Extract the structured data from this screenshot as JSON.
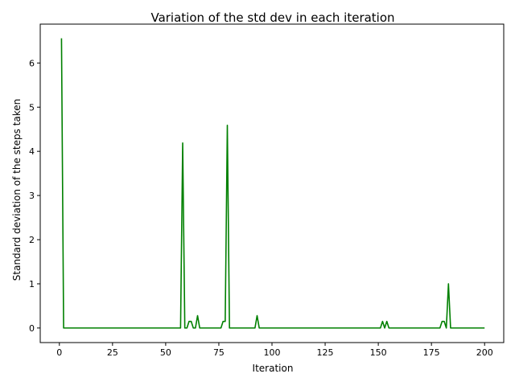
{
  "chart_data": {
    "type": "line",
    "title": "Variation of the std dev in each iteration",
    "xlabel": "Iteration",
    "ylabel": "Standard deviation of the steps taken",
    "xlim": [
      -9,
      209
    ],
    "ylim": [
      -0.33,
      6.88
    ],
    "xticks": [
      0,
      25,
      50,
      75,
      100,
      125,
      150,
      175,
      200
    ],
    "yticks": [
      0,
      1,
      2,
      3,
      4,
      5,
      6
    ],
    "grid": false,
    "legend": "none",
    "series": [
      {
        "color": "#008000",
        "points": [
          [
            1,
            6.56
          ],
          [
            2,
            0
          ],
          [
            57,
            0
          ],
          [
            58,
            4.19
          ],
          [
            59,
            0
          ],
          [
            60,
            0
          ],
          [
            61,
            0.15
          ],
          [
            62,
            0.15
          ],
          [
            63,
            0
          ],
          [
            64,
            0
          ],
          [
            65,
            0.28
          ],
          [
            66,
            0
          ],
          [
            76,
            0
          ],
          [
            77,
            0.15
          ],
          [
            78,
            0.15
          ],
          [
            79,
            4.59
          ],
          [
            80,
            0
          ],
          [
            92,
            0
          ],
          [
            93,
            0.28
          ],
          [
            94,
            0
          ],
          [
            151,
            0
          ],
          [
            152,
            0.15
          ],
          [
            153,
            0
          ],
          [
            154,
            0.15
          ],
          [
            155,
            0
          ],
          [
            179,
            0
          ],
          [
            180,
            0.15
          ],
          [
            181,
            0.15
          ],
          [
            182,
            0
          ],
          [
            183,
            1.0
          ],
          [
            184,
            0
          ],
          [
            200,
            0
          ]
        ]
      }
    ]
  }
}
